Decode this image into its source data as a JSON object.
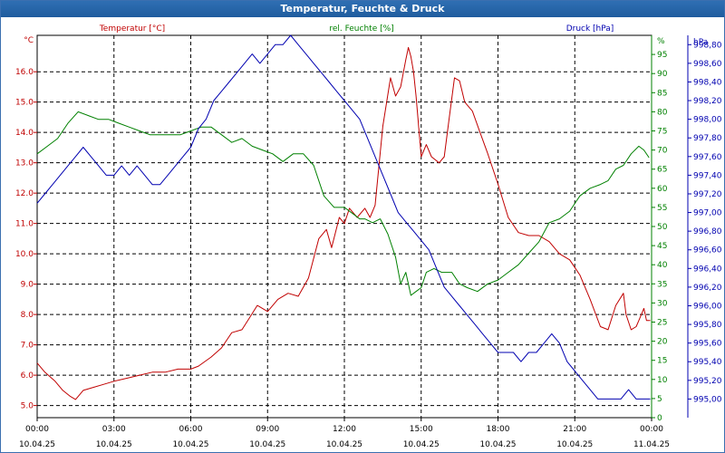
{
  "window": {
    "title": "Temperatur, Feuchte & Druck"
  },
  "colors": {
    "temperature": "#c00000",
    "humidity": "#008000",
    "pressure": "#0000b0",
    "grid": "#000000",
    "titlebar": "#1f5c9e"
  },
  "chart_data": {
    "type": "line",
    "title": "Temperatur, Feuchte & Druck",
    "grid": true,
    "x_ticks": [
      {
        "time": "00:00",
        "date": "10.04.25"
      },
      {
        "time": "03:00",
        "date": "10.04.25"
      },
      {
        "time": "06:00",
        "date": "10.04.25"
      },
      {
        "time": "09:00",
        "date": "10.04.25"
      },
      {
        "time": "12:00",
        "date": "10.04.25"
      },
      {
        "time": "15:00",
        "date": "10.04.25"
      },
      {
        "time": "18:00",
        "date": "10.04.25"
      },
      {
        "time": "21:00",
        "date": "10.04.25"
      },
      {
        "time": "00:00",
        "date": "11.04.25"
      }
    ],
    "x_range_hours": [
      0,
      24
    ],
    "axes": {
      "left": {
        "label": "Temperatur [°C]",
        "unit": "°C",
        "range": [
          4.6,
          17.2
        ],
        "ticks": [
          "5.0",
          "6.0",
          "7.0",
          "8.0",
          "9.0",
          "10.0",
          "11.0",
          "12.0",
          "13.0",
          "14.0",
          "15.0",
          "16.0"
        ]
      },
      "middle": {
        "label": "rel. Feuchte [%]",
        "unit": "%",
        "range": [
          0,
          100
        ],
        "ticks": [
          "0",
          "5",
          "10",
          "15",
          "20",
          "25",
          "30",
          "35",
          "40",
          "45",
          "50",
          "55",
          "60",
          "65",
          "70",
          "75",
          "80",
          "85",
          "90",
          "95",
          "%"
        ]
      },
      "right": {
        "label": "Druck [hPa]",
        "unit": "hPa",
        "range": [
          994.8,
          998.9
        ],
        "ticks": [
          "995,00",
          "995,20",
          "995,40",
          "995,60",
          "995,80",
          "996,00",
          "996,20",
          "996,40",
          "996,60",
          "996,80",
          "997,00",
          "997,20",
          "997,40",
          "997,60",
          "997,80",
          "998,00",
          "998,20",
          "998,40",
          "998,60",
          "998,80"
        ]
      }
    },
    "series": [
      {
        "name": "Temperatur [°C]",
        "axis": "left",
        "x": [
          0,
          0.3,
          0.7,
          1.0,
          1.3,
          1.5,
          1.8,
          2.2,
          2.6,
          3.0,
          3.5,
          4.0,
          4.5,
          5.0,
          5.5,
          6.0,
          6.3,
          6.8,
          7.2,
          7.6,
          8.0,
          8.3,
          8.6,
          9.0,
          9.4,
          9.8,
          10.2,
          10.6,
          11.0,
          11.3,
          11.5,
          11.8,
          12.0,
          12.2,
          12.5,
          12.8,
          13.0,
          13.2,
          13.5,
          13.8,
          14.0,
          14.2,
          14.4,
          14.5,
          14.6,
          14.7,
          14.8,
          15.0,
          15.2,
          15.4,
          15.7,
          15.9,
          16.1,
          16.3,
          16.5,
          16.7,
          17.0,
          17.3,
          17.6,
          18.0,
          18.4,
          18.8,
          19.2,
          19.6,
          20.0,
          20.4,
          20.8,
          21.2,
          21.6,
          22.0,
          22.3,
          22.6,
          22.9,
          23.0,
          23.2,
          23.4,
          23.5,
          23.7,
          23.8,
          23.95
        ],
        "values": [
          6.4,
          6.1,
          5.8,
          5.5,
          5.3,
          5.2,
          5.5,
          5.6,
          5.7,
          5.8,
          5.9,
          6.0,
          6.1,
          6.1,
          6.2,
          6.2,
          6.3,
          6.6,
          6.9,
          7.4,
          7.5,
          7.9,
          8.3,
          8.1,
          8.5,
          8.7,
          8.6,
          9.2,
          10.5,
          10.8,
          10.2,
          11.2,
          11.0,
          11.5,
          11.2,
          11.5,
          11.2,
          11.6,
          14.2,
          15.8,
          15.2,
          15.5,
          16.4,
          16.8,
          16.5,
          16.0,
          15.2,
          13.2,
          13.6,
          13.2,
          13.0,
          13.2,
          14.5,
          15.8,
          15.7,
          15.0,
          14.7,
          14.0,
          13.3,
          12.3,
          11.2,
          10.7,
          10.6,
          10.6,
          10.4,
          10.0,
          9.8,
          9.3,
          8.5,
          7.6,
          7.5,
          8.3,
          8.7,
          8.0,
          7.5,
          7.6,
          7.8,
          8.2,
          7.8,
          7.8
        ]
      },
      {
        "name": "rel. Feuchte [%]",
        "axis": "middle",
        "x": [
          0,
          0.4,
          0.8,
          1.2,
          1.6,
          2.0,
          2.4,
          2.8,
          3.2,
          3.6,
          4.0,
          4.4,
          4.8,
          5.2,
          5.6,
          6.0,
          6.4,
          6.8,
          7.2,
          7.6,
          8.0,
          8.4,
          8.8,
          9.2,
          9.6,
          10.0,
          10.4,
          10.8,
          11.2,
          11.6,
          12.0,
          12.4,
          12.6,
          12.8,
          13.1,
          13.4,
          13.7,
          14.0,
          14.2,
          14.4,
          14.6,
          14.8,
          15.0,
          15.2,
          15.5,
          15.8,
          16.0,
          16.2,
          16.5,
          16.8,
          17.2,
          17.6,
          18.0,
          18.4,
          18.8,
          19.2,
          19.6,
          20.0,
          20.4,
          20.8,
          21.2,
          21.6,
          22.0,
          22.3,
          22.6,
          22.9,
          23.2,
          23.5,
          23.7,
          23.9
        ],
        "values": [
          69,
          71,
          73,
          77,
          80,
          79,
          78,
          78,
          77,
          76,
          75,
          74,
          74,
          74,
          74,
          75,
          76,
          76,
          74,
          72,
          73,
          71,
          70,
          69,
          67,
          69,
          69,
          66,
          58,
          55,
          55,
          53,
          52,
          52,
          51,
          52,
          48,
          42,
          35,
          38,
          32,
          33,
          34,
          38,
          39,
          38,
          38,
          38,
          35,
          34,
          33,
          35,
          36,
          38,
          40,
          43,
          46,
          51,
          52,
          54,
          58,
          60,
          61,
          62,
          65,
          66,
          69,
          71,
          70,
          68
        ]
      },
      {
        "name": "Druck [hPa]",
        "axis": "right",
        "x": [
          0,
          0.3,
          0.6,
          0.9,
          1.2,
          1.5,
          1.8,
          2.1,
          2.4,
          2.7,
          3.0,
          3.3,
          3.6,
          3.9,
          4.2,
          4.5,
          4.8,
          5.1,
          5.4,
          5.7,
          6.0,
          6.3,
          6.6,
          6.9,
          7.2,
          7.5,
          7.8,
          8.1,
          8.4,
          8.7,
          9.0,
          9.3,
          9.6,
          9.9,
          10.2,
          10.5,
          10.8,
          11.1,
          11.4,
          11.7,
          12.0,
          12.3,
          12.6,
          12.9,
          13.2,
          13.5,
          13.8,
          14.1,
          14.4,
          14.7,
          15.0,
          15.3,
          15.6,
          15.9,
          16.2,
          16.5,
          16.8,
          17.1,
          17.4,
          17.7,
          18.0,
          18.3,
          18.6,
          18.9,
          19.2,
          19.5,
          19.8,
          20.1,
          20.4,
          20.7,
          21.0,
          21.3,
          21.6,
          21.9,
          22.2,
          22.5,
          22.8,
          23.1,
          23.4,
          23.7,
          23.95
        ],
        "values": [
          997.1,
          997.2,
          997.3,
          997.4,
          997.5,
          997.6,
          997.7,
          997.6,
          997.5,
          997.4,
          997.4,
          997.5,
          997.4,
          997.5,
          997.4,
          997.3,
          997.3,
          997.4,
          997.5,
          997.6,
          997.7,
          997.9,
          998.0,
          998.2,
          998.3,
          998.4,
          998.5,
          998.6,
          998.7,
          998.6,
          998.7,
          998.8,
          998.8,
          998.9,
          998.8,
          998.7,
          998.6,
          998.5,
          998.4,
          998.3,
          998.2,
          998.1,
          998.0,
          997.8,
          997.6,
          997.4,
          997.2,
          997.0,
          996.9,
          996.8,
          996.7,
          996.6,
          996.4,
          996.2,
          996.1,
          996.0,
          995.9,
          995.8,
          995.7,
          995.6,
          995.5,
          995.5,
          995.5,
          995.4,
          995.5,
          995.5,
          995.6,
          995.7,
          995.6,
          995.4,
          995.3,
          995.2,
          995.1,
          995.0,
          995.0,
          995.0,
          995.0,
          995.1,
          995.0,
          995.0,
          995.0
        ]
      }
    ]
  }
}
